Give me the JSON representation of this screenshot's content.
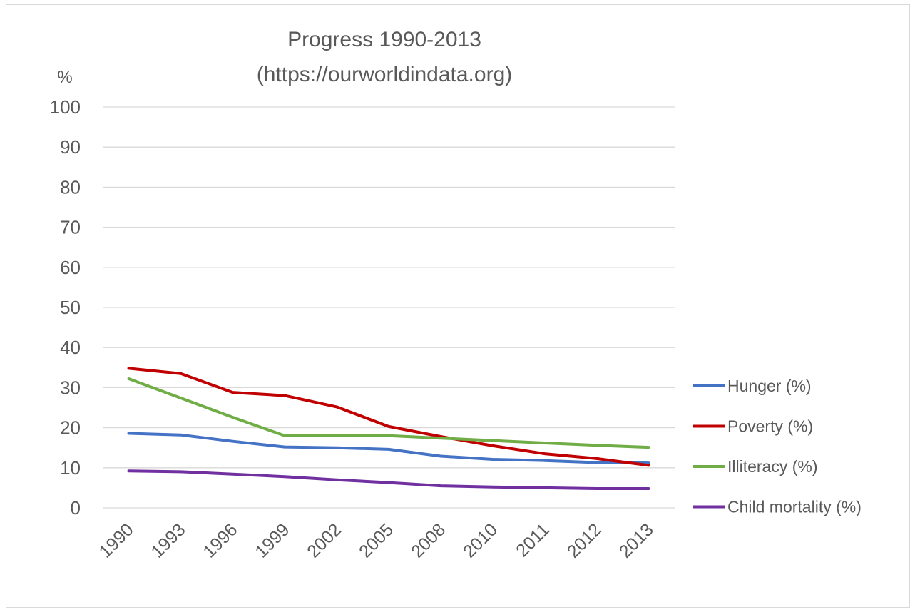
{
  "chart_data": {
    "type": "line",
    "title": "Progress 1990-2013",
    "subtitle": "(https://ourworldindata.org)",
    "ylabel": "%",
    "xlabel": "",
    "categories": [
      "1990",
      "1993",
      "1996",
      "1999",
      "2002",
      "2005",
      "2008",
      "2010",
      "2011",
      "2012",
      "2013"
    ],
    "ylim": [
      0,
      100
    ],
    "yticks": [
      0,
      10,
      20,
      30,
      40,
      50,
      60,
      70,
      80,
      90,
      100
    ],
    "grid": true,
    "legend_position": "right",
    "series": [
      {
        "name": "Hunger (%)",
        "color": "#4472C4",
        "values": [
          18.6,
          18.2,
          16.6,
          15.2,
          15.0,
          14.6,
          12.9,
          12.1,
          11.8,
          11.3,
          11.2
        ]
      },
      {
        "name": "Poverty (%)",
        "color": "#C00000",
        "values": [
          34.8,
          33.5,
          28.8,
          28.0,
          25.2,
          20.3,
          17.8,
          15.5,
          13.5,
          12.3,
          10.6
        ]
      },
      {
        "name": "Illiteracy (%)",
        "color": "#70AD47",
        "values": [
          32.2,
          27.4,
          22.6,
          18.0,
          18.0,
          18.0,
          17.4,
          16.8,
          16.2,
          15.6,
          15.1
        ]
      },
      {
        "name": "Child mortality (%)",
        "color": "#7030A0",
        "values": [
          9.2,
          9.0,
          8.4,
          7.8,
          7.0,
          6.3,
          5.5,
          5.2,
          5.0,
          4.8,
          4.8
        ]
      }
    ]
  }
}
